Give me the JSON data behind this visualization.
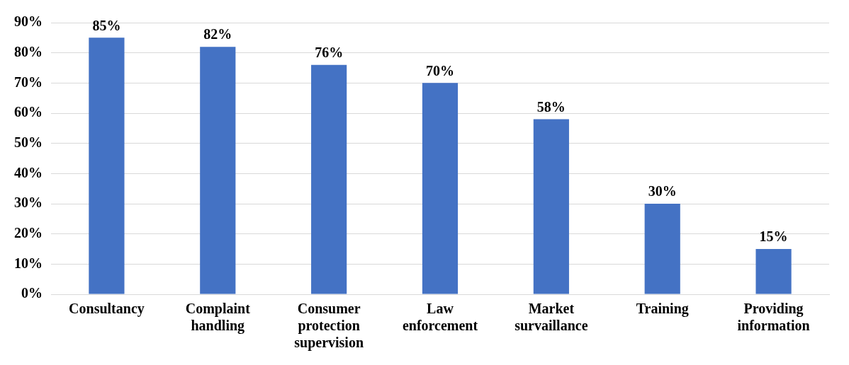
{
  "chart_data": {
    "type": "bar",
    "categories": [
      "Consultancy",
      "Complaint handling",
      "Consumer protection supervision",
      "Law enforcement",
      "Market survaillance",
      "Training",
      "Providing information"
    ],
    "values": [
      85,
      82,
      76,
      70,
      58,
      30,
      15
    ],
    "value_labels": [
      "85%",
      "82%",
      "76%",
      "70%",
      "58%",
      "30%",
      "15%"
    ],
    "color": "#4472c4",
    "ylim": [
      0,
      90
    ],
    "yticks": [
      {
        "value": 0,
        "label": "0%"
      },
      {
        "value": 10,
        "label": "10%"
      },
      {
        "value": 20,
        "label": "20%"
      },
      {
        "value": 30,
        "label": "30%"
      },
      {
        "value": 40,
        "label": "40%"
      },
      {
        "value": 50,
        "label": "50%"
      },
      {
        "value": 60,
        "label": "60%"
      },
      {
        "value": 70,
        "label": "70%"
      },
      {
        "value": 80,
        "label": "80%"
      },
      {
        "value": 90,
        "label": "90%"
      }
    ],
    "grid": "y"
  }
}
